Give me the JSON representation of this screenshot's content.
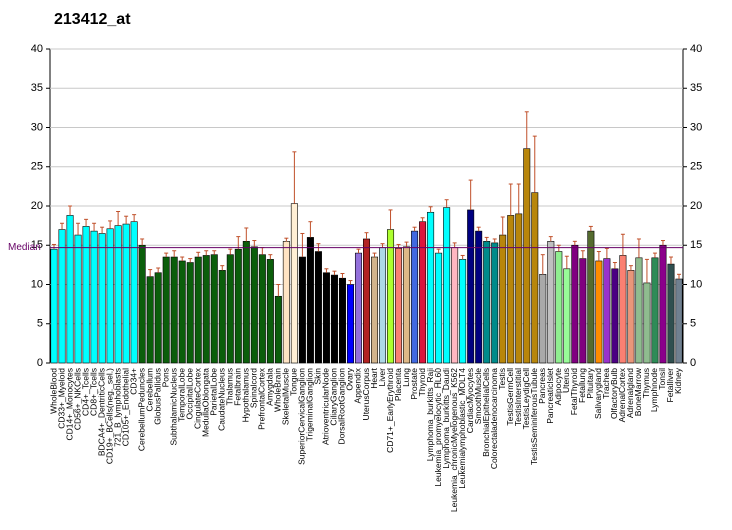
{
  "chart_data": {
    "type": "bar",
    "title": "213412_at",
    "median_label": "Median",
    "median": 14.7,
    "categories": [
      "WholeBlood",
      "CD33+_Myeloid",
      "CD14+_Monocytes",
      "CD56+_NKCells",
      "CD4+_Tcells",
      "CD8+_Tcells",
      "BDCA4+_DentriticCells",
      "CD19+_BCells(neg._sel.)",
      "721_B_lymphoblasts",
      "CD105+_Endothelial",
      "CD34+",
      "CerebellumPeduncles",
      "Cerebellum",
      "GlobusPallidus",
      "Pons",
      "SubthalamicNucleus",
      "TemporalLobe",
      "OccipitalLobe",
      "CingulateCortex",
      "MedullaOblongata",
      "ParietalLobe",
      "CaudateNucleus",
      "Thalamus",
      "Fetalbrain",
      "Hypothalamus",
      "Spinalcord",
      "PrefrontalCortex",
      "Amygdala",
      "WholeBrain",
      "SkeletalMuscle",
      "Tongue",
      "SuperiorCervicalGanglion",
      "TrigeminalGanglion",
      "Skin",
      "AtrioventricularNode",
      "CiliaryGanglion",
      "DorsalRootGanglion",
      "Ovary",
      "Appendix",
      "UterusCorpus",
      "Heart",
      "Liver",
      "CD71+_EarlyErythroid",
      "Placenta",
      "Lung",
      "Prostate",
      "Thyroid",
      "Lymphoma_burkitts_Raji",
      "Leukemia_promyelocytic_HL60",
      "Lymphoma_burkitts_Daudi",
      "Leukemia_chronicMyelogenous_K562",
      "Leukemialymphoblastic_MOLT4",
      "CardiacMyocytes",
      "SmoothMuscle",
      "BronchialEpithelialCells",
      "Colorectaladenocarcinoma",
      "Testis",
      "TestisGermCell",
      "TestisInterstitial",
      "TestisLeydigCell",
      "TestisSeminiferousTubule",
      "Pancreas",
      "PancreaticIslet",
      "Adipocyte",
      "Uterus",
      "FetalThyroid",
      "Fetallung",
      "Pituitary",
      "Salivarygland",
      "Trachea",
      "OlfactoryBulb",
      "AdrenalCortex",
      "Adrenalgland",
      "BoneMarrow",
      "Thymus",
      "Lymphnode",
      "Tonsil",
      "Fetalliver",
      "Kidney"
    ],
    "values": [
      14.5,
      17,
      18.8,
      16.3,
      17.4,
      16.8,
      16.5,
      17.1,
      17.5,
      17.7,
      18,
      15,
      11,
      11.5,
      13.5,
      13.5,
      13,
      12.8,
      13.5,
      13.7,
      13.8,
      11.8,
      13.8,
      14.5,
      15.5,
      14.8,
      13.8,
      13.2,
      8.5,
      15.5,
      20.3,
      13.5,
      16,
      14.2,
      11.5,
      11.2,
      10.8,
      10,
      14,
      15.8,
      13.5,
      14.7,
      17,
      14.6,
      14.8,
      16.8,
      18,
      19.2,
      14,
      19.8,
      14.7,
      13.2,
      19.5,
      16.8,
      15.5,
      15.3,
      16.3,
      18.8,
      19,
      27.3,
      21.7,
      11.3,
      15.5,
      14.2,
      12,
      15,
      13.3,
      16.8,
      13,
      13.3,
      12,
      13.7,
      11.8,
      13.4,
      10.2,
      13.4,
      15,
      12.6,
      10.7
    ],
    "errors": [
      0.6,
      0.8,
      1.2,
      1.5,
      0.9,
      1,
      0.8,
      1,
      1.8,
      1,
      0.9,
      0.8,
      0.9,
      0.6,
      0.5,
      0.8,
      0.5,
      0.5,
      0.6,
      0.6,
      0.5,
      0.6,
      0.7,
      1.6,
      1.7,
      0.8,
      0.9,
      0.6,
      1.5,
      0.4,
      6.6,
      3,
      2,
      1,
      0.5,
      0.5,
      0.6,
      0.5,
      0.5,
      0.8,
      0.5,
      0.5,
      2.5,
      0.5,
      0.6,
      0.5,
      0.5,
      0.7,
      0.5,
      1,
      0.6,
      0.5,
      3.8,
      0.5,
      0.5,
      0.5,
      2.3,
      4,
      3.8,
      4.7,
      7.2,
      2.5,
      0.6,
      0.8,
      1.6,
      0.5,
      1,
      0.6,
      1.2,
      1.3,
      0.8,
      2.7,
      0.6,
      2.4,
      3,
      0.6,
      0.6,
      0.9,
      0.6
    ],
    "colors": [
      "#00ffff",
      "#00ffff",
      "#00ffff",
      "#00ffff",
      "#00ffff",
      "#00ffff",
      "#00ffff",
      "#00ffff",
      "#00ffff",
      "#00ffff",
      "#00ffff",
      "#0b5e0b",
      "#0b5e0b",
      "#0b5e0b",
      "#0b5e0b",
      "#0b5e0b",
      "#0b5e0b",
      "#0b5e0b",
      "#0b5e0b",
      "#0b5e0b",
      "#0b5e0b",
      "#0b5e0b",
      "#0b5e0b",
      "#0b5e0b",
      "#0b5e0b",
      "#0b5e0b",
      "#0b5e0b",
      "#0b5e0b",
      "#0b5e0b",
      "#ffe4c4",
      "#ffefd5",
      "#000000",
      "#000000",
      "#000000",
      "#000000",
      "#000000",
      "#000000",
      "#0000ff",
      "#9370db",
      "#b22222",
      "#d2b48c",
      "#add8e6",
      "#adff2f",
      "#fa8072",
      "#deb887",
      "#4169e1",
      "#dc143c",
      "#00ffff",
      "#00ffff",
      "#00ffff",
      "#ffb6c1",
      "#00ffff",
      "#000080",
      "#000080",
      "#008b8b",
      "#008b8b",
      "#b8860b",
      "#b8860b",
      "#b8860b",
      "#b8860b",
      "#b8860b",
      "#a9a9a9",
      "#c0c0c0",
      "#90ee90",
      "#98fb98",
      "#800080",
      "#800080",
      "#556b2f",
      "#ff8c00",
      "#9932cc",
      "#4b0082",
      "#fa8072",
      "#e9967a",
      "#8fbc8f",
      "#8fbc8f",
      "#2e8b57",
      "#8b008b",
      "#2f4f4f",
      "#708090"
    ],
    "error_color": "#c0502a",
    "median_color": "#660066",
    "ylim": [
      0,
      40
    ],
    "yticks": [
      0,
      5,
      10,
      15,
      20,
      25,
      30,
      35,
      40
    ],
    "grid": true
  }
}
